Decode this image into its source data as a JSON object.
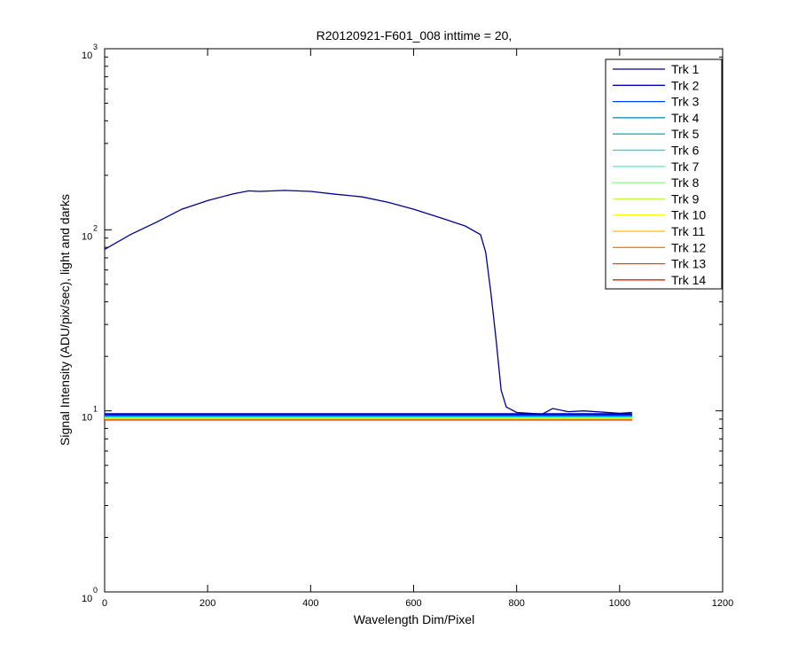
{
  "window": {
    "background": "#ffffff"
  },
  "chart_data": {
    "type": "line",
    "title": "R20120921-F601_008 inttime = 20,",
    "xlabel": "Wavelength Dim/Pixel",
    "ylabel": "Signal Intensity (ADU/pix/sec), light and darks",
    "xlim": [
      0,
      1200
    ],
    "ylim": [
      1,
      1000
    ],
    "yscale": "log",
    "grid": false,
    "legend_position": "top-right",
    "x_ticks": [
      0,
      200,
      400,
      600,
      800,
      1000,
      1200
    ],
    "y_ticks": [
      {
        "value": 1,
        "base": "10",
        "exp": "0"
      },
      {
        "value": 10,
        "base": "10",
        "exp": "1"
      },
      {
        "value": 100,
        "base": "10",
        "exp": "2"
      },
      {
        "value": 1000,
        "base": "10",
        "exp": "3"
      }
    ],
    "series": [
      {
        "name": "Trk 1",
        "color": "#00008f",
        "x": [
          0,
          20,
          50,
          100,
          150,
          200,
          250,
          280,
          300,
          350,
          400,
          450,
          480,
          500,
          550,
          600,
          650,
          700,
          730,
          740,
          750,
          760,
          770,
          780,
          800,
          850,
          870,
          900,
          930,
          1000,
          1024
        ],
        "y": [
          78,
          84,
          94,
          110,
          130,
          145,
          158,
          164,
          163,
          165,
          163,
          157,
          154,
          152,
          142,
          130,
          117,
          105,
          94,
          75,
          45,
          25,
          13,
          10.5,
          9.8,
          9.6,
          10.3,
          9.9,
          10.0,
          9.7,
          9.8
        ]
      },
      {
        "name": "Trk 2",
        "color": "#0000bf",
        "x": [
          0,
          1024
        ],
        "y": [
          9.6,
          9.6
        ]
      },
      {
        "name": "Trk 3",
        "color": "#0040ff",
        "x": [
          0,
          1024
        ],
        "y": [
          9.5,
          9.5
        ]
      },
      {
        "name": "Trk 4",
        "color": "#0080c0",
        "x": [
          0,
          1024
        ],
        "y": [
          9.45,
          9.45
        ]
      },
      {
        "name": "Trk 5",
        "color": "#00bfbf",
        "x": [
          0,
          1024
        ],
        "y": [
          9.4,
          9.4
        ]
      },
      {
        "name": "Trk 6",
        "color": "#00dfdf",
        "x": [
          0,
          1024
        ],
        "y": [
          9.35,
          9.35
        ]
      },
      {
        "name": "Trk 7",
        "color": "#40ffbf",
        "x": [
          0,
          1024
        ],
        "y": [
          9.3,
          9.3
        ]
      },
      {
        "name": "Trk 8",
        "color": "#80ff80",
        "x": [
          0,
          1024
        ],
        "y": [
          9.25,
          9.25
        ]
      },
      {
        "name": "Trk 9",
        "color": "#bfff40",
        "x": [
          0,
          1024
        ],
        "y": [
          9.2,
          9.2
        ]
      },
      {
        "name": "Trk 10",
        "color": "#ffff00",
        "x": [
          0,
          1024
        ],
        "y": [
          9.15,
          9.15
        ]
      },
      {
        "name": "Trk 11",
        "color": "#ffbf00",
        "x": [
          0,
          1024
        ],
        "y": [
          9.1,
          9.1
        ]
      },
      {
        "name": "Trk 12",
        "color": "#ff8000",
        "x": [
          0,
          1024
        ],
        "y": [
          9.05,
          9.05
        ]
      },
      {
        "name": "Trk 13",
        "color": "#ff4000",
        "x": [
          0,
          1024
        ],
        "y": [
          9.0,
          9.0
        ]
      },
      {
        "name": "Trk 14",
        "color": "#df0000",
        "x": [
          0,
          1024
        ],
        "y": [
          8.95,
          8.95
        ]
      }
    ]
  }
}
